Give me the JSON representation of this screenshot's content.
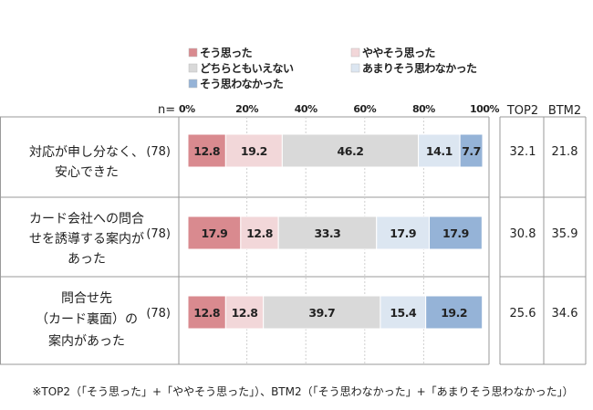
{
  "chart_data": {
    "type": "bar",
    "stacked": true,
    "orientation": "horizontal",
    "n_label": "n=",
    "xticks": [
      "0%",
      "20%",
      "40%",
      "60%",
      "80%",
      "100%"
    ],
    "xlim": [
      0,
      100
    ],
    "legend": [
      {
        "name": "そう思った",
        "color": "#d98a8f"
      },
      {
        "name": "ややそう思った",
        "color": "#f2d7d9"
      },
      {
        "name": "どちらともいえない",
        "color": "#d9d9d9"
      },
      {
        "name": "あまりそう思わなかった",
        "color": "#dce6f1"
      },
      {
        "name": "そう思わなかった",
        "color": "#95b3d7"
      }
    ],
    "categories": [
      {
        "label_lines": [
          "対応が申し分なく、",
          "安心できた"
        ],
        "n": "(78)"
      },
      {
        "label_lines": [
          "カード会社への問合",
          "せを誘導する案内が",
          "あった"
        ],
        "n": "(78)"
      },
      {
        "label_lines": [
          "問合せ先",
          "（カード裏面）の",
          "案内があった"
        ],
        "n": "(78)"
      }
    ],
    "series": [
      {
        "name": "そう思った",
        "values": [
          12.8,
          17.9,
          12.8
        ]
      },
      {
        "name": "ややそう思った",
        "values": [
          19.2,
          12.8,
          12.8
        ]
      },
      {
        "name": "どちらともいえない",
        "values": [
          46.2,
          33.3,
          39.7
        ]
      },
      {
        "name": "あまりそう思わなかった",
        "values": [
          14.1,
          17.9,
          15.4
        ]
      },
      {
        "name": "そう思わなかった",
        "values": [
          7.7,
          17.9,
          19.2
        ]
      }
    ],
    "value_labels": [
      [
        "12.8",
        "19.2",
        "46.2",
        "14.1",
        "7.7"
      ],
      [
        "17.9",
        "12.8",
        "33.3",
        "17.9",
        "17.9"
      ],
      [
        "12.8",
        "12.8",
        "39.7",
        "15.4",
        "19.2"
      ]
    ],
    "side_table": {
      "headers": [
        "TOP2",
        "BTM2"
      ],
      "rows": [
        [
          "32.1",
          "21.8"
        ],
        [
          "30.8",
          "35.9"
        ],
        [
          "25.6",
          "34.6"
        ]
      ]
    },
    "footnote": "※TOP2（「そう思った」+「ややそう思った」）、BTM2（「そう思わなかった」+「あまりそう思わなかった」）"
  }
}
